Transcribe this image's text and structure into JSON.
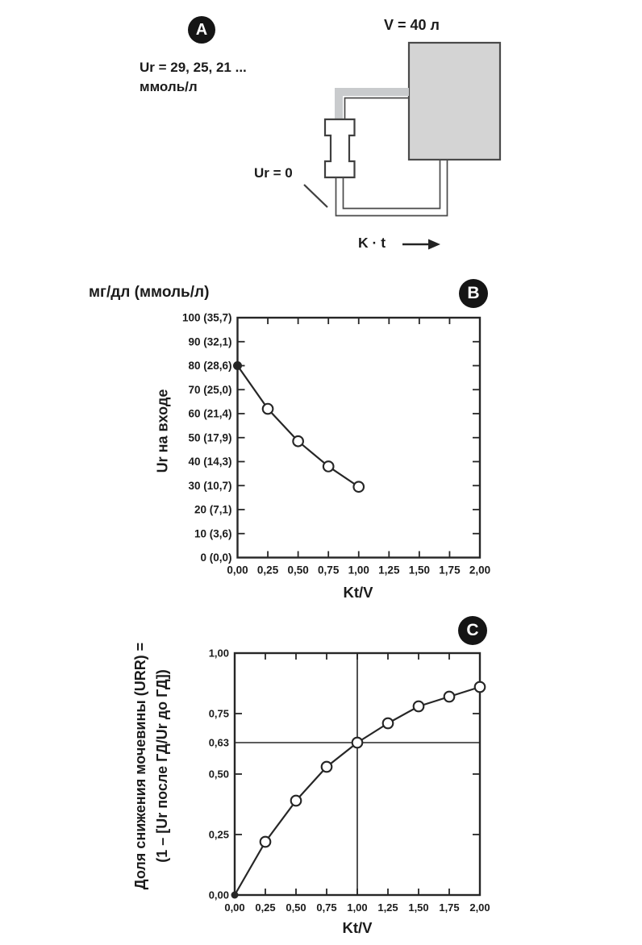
{
  "panel_a": {
    "badge": "A",
    "urea_label_line1": "Ur = 29, 25, 21 ...",
    "urea_label_line2": "ммоль/л",
    "volume_label": "V = 40 л",
    "outlet_label": "Ur = 0",
    "clearance_label": "K · t"
  },
  "panel_b": {
    "badge": "B"
  },
  "panel_c": {
    "badge": "C"
  },
  "chart_data": [
    {
      "panel": "B",
      "type": "line",
      "title": "мг/дл (ммоль/л)",
      "xlabel": "Kt/V",
      "ylabel": "Ur на входе",
      "x": [
        0,
        0.25,
        0.5,
        0.75,
        1.0
      ],
      "y": [
        80,
        62,
        48.5,
        38,
        29.5
      ],
      "xlim": [
        0,
        2
      ],
      "ylim": [
        0,
        100
      ],
      "x_tick_values": [
        0,
        0.25,
        0.5,
        0.75,
        1.0,
        1.25,
        1.5,
        1.75,
        2.0
      ],
      "x_tick_labels": [
        "0,00",
        "0,25",
        "0,50",
        "0,75",
        "1,00",
        "1,25",
        "1,50",
        "1,75",
        "2,00"
      ],
      "y_tick_values": [
        100,
        90,
        80,
        70,
        60,
        50,
        40,
        30,
        20,
        10,
        0
      ],
      "y_tick_labels": [
        "100 (35,7)",
        "90 (32,1)",
        "80 (28,6)",
        "70 (25,0)",
        "60 (21,4)",
        "50 (17,9)",
        "40 (14,3)",
        "30 (10,7)",
        "20 (7,1)",
        "10 (3,6)",
        "0 (0,0)"
      ],
      "marker": "open-circle",
      "first_point_filled": true,
      "grid": false,
      "legend": null
    },
    {
      "panel": "C",
      "type": "line",
      "title": "",
      "xlabel": "Kt/V",
      "ylabel_line1": "Доля снижения мочевины (URR) =",
      "ylabel_line2": "(1 – [Ur после ГД/Ur до ГД])",
      "x": [
        0,
        0.25,
        0.5,
        0.75,
        1.0,
        1.25,
        1.5,
        1.75,
        2.0
      ],
      "y": [
        0.0,
        0.22,
        0.39,
        0.53,
        0.63,
        0.71,
        0.78,
        0.82,
        0.86
      ],
      "xlim": [
        0,
        2
      ],
      "ylim": [
        0,
        1
      ],
      "x_tick_values": [
        0,
        0.25,
        0.5,
        0.75,
        1.0,
        1.25,
        1.5,
        1.75,
        2.0
      ],
      "x_tick_labels": [
        "0,00",
        "0,25",
        "0,50",
        "0,75",
        "1,00",
        "1,25",
        "1,50",
        "1,75",
        "2,00"
      ],
      "y_tick_values": [
        1.0,
        0.75,
        0.63,
        0.5,
        0.25,
        0.0
      ],
      "y_tick_labels": [
        "1,00",
        "0,75",
        "0,63",
        "0,50",
        "0,25",
        "0,00"
      ],
      "reference_lines": {
        "x": 1.0,
        "y": 0.63
      },
      "marker": "open-circle",
      "first_point_filled": true,
      "grid": false,
      "legend": null
    }
  ],
  "colors": {
    "ink": "#262626",
    "text": "#1b1b1b",
    "tank_fill": "#d4d4d4",
    "tank_stroke": "#4a4a4a",
    "tube_gray": "#c9cbcd",
    "marker_fill": "#ffffff",
    "badge_bg": "#151515",
    "badge_fg": "#ffffff"
  }
}
